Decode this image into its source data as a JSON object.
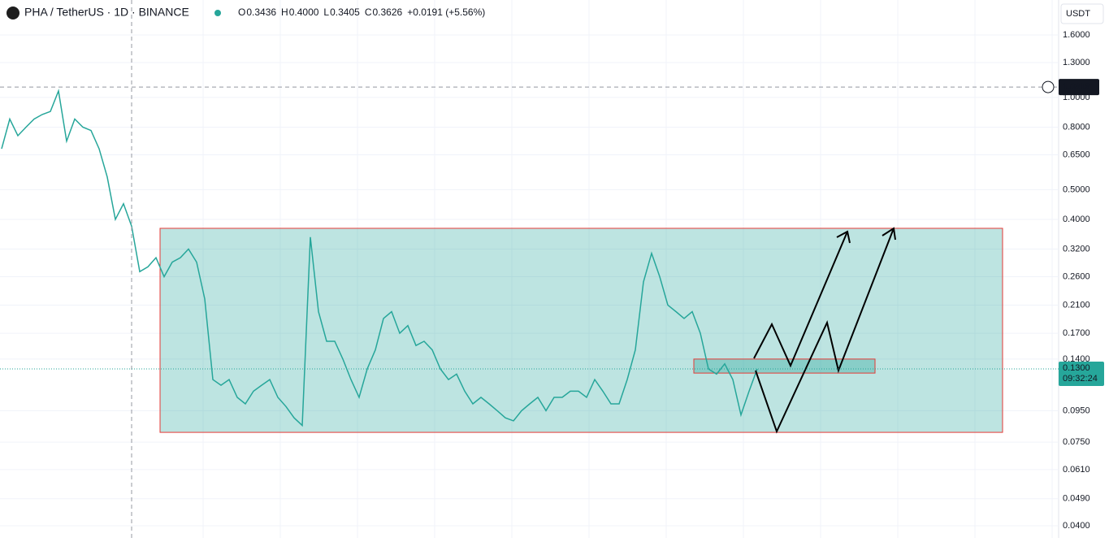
{
  "header": {
    "title": "PHA / TetherUS · 1D · BINANCE",
    "ohlc": [
      {
        "key": "O",
        "value": "0.3436"
      },
      {
        "key": "H",
        "value": "0.4000"
      },
      {
        "key": "L",
        "value": "0.3405"
      },
      {
        "key": "C",
        "value": "0.3626"
      }
    ],
    "change": "+0.0191 (+5.56%)",
    "currency": "USDT"
  },
  "chart_data": {
    "type": "line",
    "log_scale": true,
    "color": "#26a69a",
    "values": [
      0.68,
      0.85,
      0.75,
      0.8,
      0.85,
      0.88,
      0.9,
      1.05,
      0.72,
      0.85,
      0.8,
      0.78,
      0.68,
      0.55,
      0.4,
      0.45,
      0.38,
      0.27,
      0.28,
      0.3,
      0.26,
      0.29,
      0.3,
      0.32,
      0.29,
      0.22,
      0.12,
      0.115,
      0.12,
      0.105,
      0.1,
      0.11,
      0.115,
      0.12,
      0.105,
      0.098,
      0.09,
      0.085,
      0.35,
      0.2,
      0.16,
      0.16,
      0.14,
      0.12,
      0.105,
      0.13,
      0.15,
      0.19,
      0.2,
      0.17,
      0.18,
      0.155,
      0.16,
      0.15,
      0.13,
      0.12,
      0.125,
      0.11,
      0.1,
      0.105,
      0.1,
      0.095,
      0.09,
      0.088,
      0.095,
      0.1,
      0.105,
      0.095,
      0.105,
      0.105,
      0.11,
      0.11,
      0.105,
      0.12,
      0.11,
      0.1,
      0.1,
      0.12,
      0.15,
      0.25,
      0.31,
      0.26,
      0.21,
      0.2,
      0.19,
      0.2,
      0.17,
      0.13,
      0.125,
      0.135,
      0.12,
      0.092,
      0.11,
      0.13
    ],
    "ylim": [
      0.0365,
      2.08
    ],
    "yticks": [
      {
        "value": 1.6,
        "label": "1.6000"
      },
      {
        "value": 1.3,
        "label": "1.3000"
      },
      {
        "value": 1.0,
        "label": "1.0000"
      },
      {
        "value": 0.8,
        "label": "0.8000"
      },
      {
        "value": 0.65,
        "label": "0.6500"
      },
      {
        "value": 0.5,
        "label": "0.5000"
      },
      {
        "value": 0.4,
        "label": "0.4000"
      },
      {
        "value": 0.32,
        "label": "0.3200"
      },
      {
        "value": 0.26,
        "label": "0.2600"
      },
      {
        "value": 0.21,
        "label": "0.2100"
      },
      {
        "value": 0.17,
        "label": "0.1700"
      },
      {
        "value": 0.14,
        "label": "0.1400"
      },
      {
        "value": 0.095,
        "label": "0.0950"
      },
      {
        "value": 0.075,
        "label": "0.0750"
      },
      {
        "value": 0.061,
        "label": "0.0610"
      },
      {
        "value": 0.049,
        "label": "0.0490"
      },
      {
        "value": 0.04,
        "label": "0.0400"
      }
    ],
    "grid": true,
    "crosshair": {
      "value": 1.0816,
      "label": "1.0816"
    },
    "last_price": {
      "value": 0.13,
      "label": "0.1300",
      "countdown": "09:32:24"
    },
    "zones": [
      {
        "high": 0.374,
        "low": 0.0807,
        "color": "#26a69a"
      },
      {
        "high": 0.14,
        "low": 0.126,
        "color": "#26a69a"
      }
    ]
  }
}
